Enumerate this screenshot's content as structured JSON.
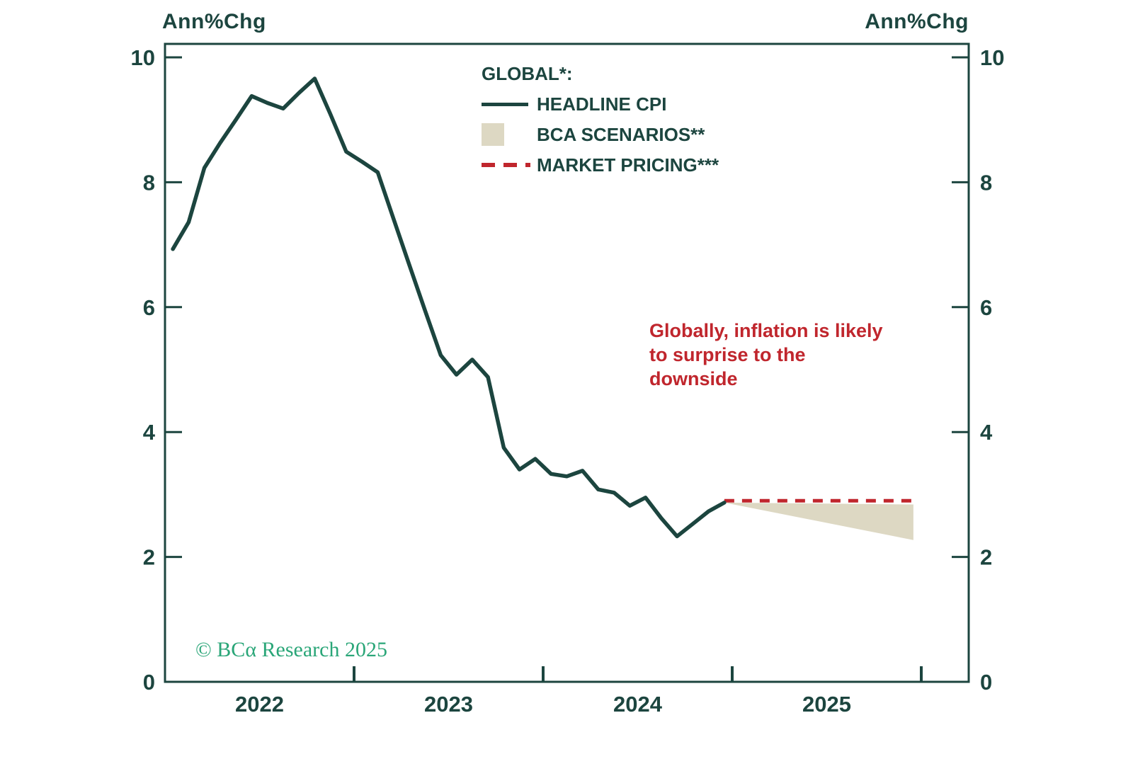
{
  "header": {
    "left_axis_title": "Ann%Chg",
    "right_axis_title": "Ann%Chg"
  },
  "legend": {
    "title": "GLOBAL*:",
    "items": [
      {
        "label": "HEADLINE CPI",
        "swatch": "solid-line-icon"
      },
      {
        "label": "BCA SCENARIOS**",
        "swatch": "filled-area-icon"
      },
      {
        "label": "MARKET PRICING***",
        "swatch": "dashed-line-icon"
      }
    ]
  },
  "annotation": {
    "text": "Globally, inflation is likely\nto surprise to the\ndownside"
  },
  "footer": {
    "copyright": "© BCα Research 2025"
  },
  "colors": {
    "ink": "#1c453f",
    "red": "#c0262d",
    "beige": "#ddd8c3",
    "green": "#2aa678",
    "background": "#ffffff"
  },
  "chart_data": {
    "type": "line",
    "title": "",
    "xlabel": "",
    "ylabel_left": "Ann%Chg",
    "ylabel_right": "Ann%Chg",
    "ylim": [
      0,
      10
    ],
    "yticks": [
      0,
      2,
      4,
      6,
      8,
      10
    ],
    "grid": false,
    "legend_position": "top-center",
    "x_year_labels": [
      "2022",
      "2023",
      "2024",
      "2025"
    ],
    "x_axis_boundary_tick_years": [
      2023,
      2024,
      2025,
      2026
    ],
    "series": [
      {
        "name": "HEADLINE CPI",
        "style": "solid",
        "color": "ink",
        "frequency": "monthly",
        "start": "2022-01",
        "months": [
          "2022-01",
          "2022-02",
          "2022-03",
          "2022-04",
          "2022-05",
          "2022-06",
          "2022-07",
          "2022-08",
          "2022-09",
          "2022-10",
          "2022-11",
          "2022-12",
          "2023-01",
          "2023-02",
          "2023-03",
          "2023-04",
          "2023-05",
          "2023-06",
          "2023-07",
          "2023-08",
          "2023-09",
          "2023-10",
          "2023-11",
          "2023-12",
          "2024-01",
          "2024-02",
          "2024-03",
          "2024-04",
          "2024-05",
          "2024-06",
          "2024-07",
          "2024-08",
          "2024-09",
          "2024-10",
          "2024-11",
          "2024-12"
        ],
        "values": [
          6.93,
          7.36,
          8.23,
          8.63,
          9.0,
          9.38,
          9.27,
          9.18,
          9.43,
          9.66,
          9.09,
          8.49,
          8.33,
          8.16,
          7.42,
          6.68,
          5.95,
          5.23,
          4.92,
          5.16,
          4.88,
          3.75,
          3.4,
          3.57,
          3.33,
          3.29,
          3.38,
          3.08,
          3.03,
          2.82,
          2.95,
          2.62,
          2.33,
          2.53,
          2.73,
          2.87
        ]
      },
      {
        "name": "MARKET PRICING***",
        "style": "dashed",
        "color": "red",
        "x_start": "2024-12",
        "x_end": "2025-12",
        "value_start": 2.9,
        "value_end": 2.9
      },
      {
        "name": "BCA SCENARIOS**",
        "style": "area-wedge",
        "color": "beige",
        "apex": {
          "x": "2024-12",
          "value": 2.87
        },
        "end": {
          "x": "2025-12",
          "top": 2.84,
          "bottom": 2.27
        }
      }
    ]
  }
}
